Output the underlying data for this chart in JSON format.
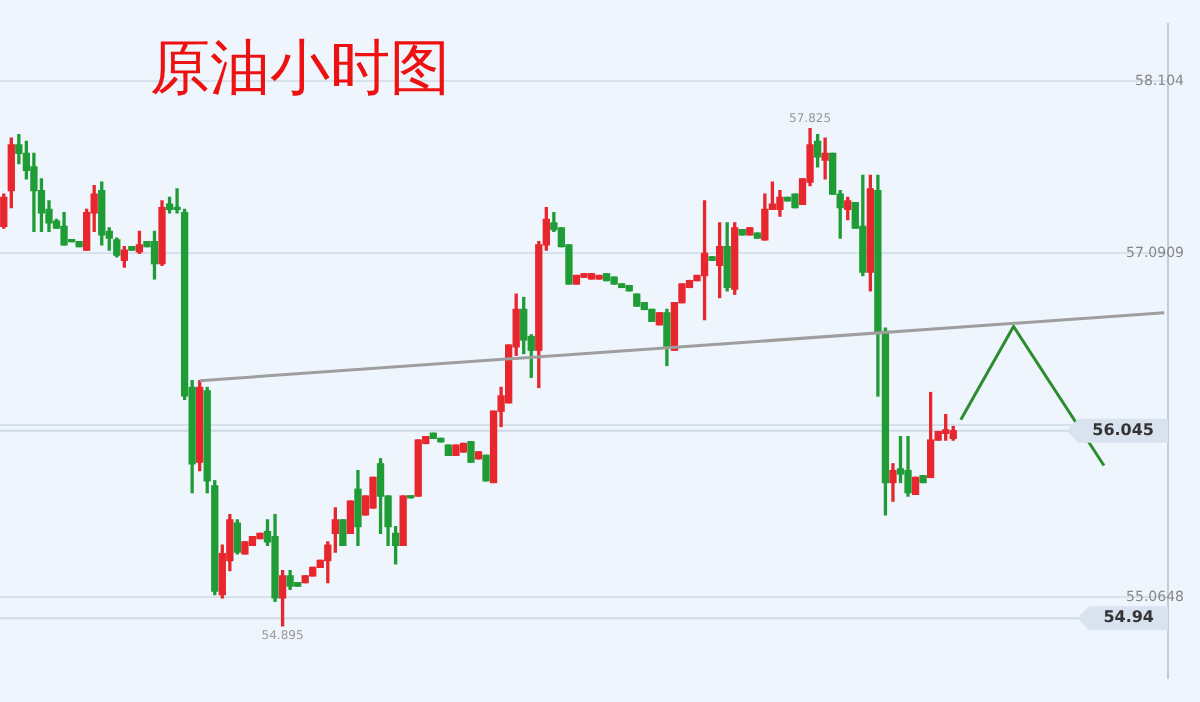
{
  "chart_data": {
    "type": "candlestick",
    "title": "原油小时图",
    "categories": [
      null,
      null,
      null,
      null,
      null,
      null,
      null,
      null,
      null,
      null,
      null,
      null,
      null,
      null,
      null,
      null,
      null,
      null,
      null,
      null,
      null,
      null,
      null,
      null,
      null,
      null,
      null,
      null,
      null,
      null,
      null,
      null,
      null,
      null,
      null,
      null,
      null,
      null,
      null,
      null,
      null,
      null,
      null,
      null,
      null,
      null,
      null,
      null,
      null,
      null,
      null,
      null,
      null,
      null,
      null,
      null,
      null,
      null,
      null,
      null,
      null,
      null,
      null,
      null,
      null,
      null,
      null,
      null,
      null,
      null,
      null,
      null,
      null,
      null,
      null,
      null,
      null,
      null,
      null,
      null,
      null,
      null,
      null,
      null,
      null,
      null,
      null,
      null,
      null,
      null,
      null,
      null,
      null,
      null,
      null,
      null,
      null,
      null,
      null,
      null,
      null,
      null,
      null,
      null,
      null,
      null,
      null,
      null,
      null,
      null,
      null,
      null,
      null,
      null,
      null,
      null,
      null,
      null,
      null,
      null,
      null,
      null,
      null,
      null,
      null,
      null,
      null,
      null,
      null,
      null,
      null,
      null,
      null,
      null,
      null,
      null,
      null,
      null,
      null,
      null,
      null,
      null,
      null,
      null,
      null,
      null,
      null,
      null,
      null,
      null,
      null,
      null,
      null,
      null,
      null
    ],
    "ohlc": [
      [
        57.25,
        57.44,
        57.24,
        57.42
      ],
      [
        57.46,
        57.77,
        57.36,
        57.73
      ],
      [
        57.73,
        57.79,
        57.62,
        57.68
      ],
      [
        57.68,
        57.75,
        57.53,
        57.58
      ],
      [
        57.6,
        57.68,
        57.22,
        57.46
      ],
      [
        57.46,
        57.53,
        57.22,
        57.33
      ],
      [
        57.35,
        57.4,
        57.22,
        57.27
      ],
      [
        57.28,
        57.29,
        57.24,
        57.24
      ],
      [
        57.25,
        57.33,
        57.14,
        57.14
      ],
      [
        57.17,
        57.17,
        57.16,
        57.16
      ],
      [
        57.16,
        57.16,
        57.13,
        57.13
      ],
      [
        57.11,
        57.35,
        57.11,
        57.33
      ],
      [
        57.33,
        57.49,
        57.22,
        57.44
      ],
      [
        57.46,
        57.51,
        57.14,
        57.2
      ],
      [
        57.22,
        57.24,
        57.11,
        57.18
      ],
      [
        57.17,
        57.18,
        57.07,
        57.08
      ],
      [
        57.05,
        57.13,
        57.01,
        57.11
      ],
      [
        57.13,
        57.13,
        57.11,
        57.11
      ],
      [
        57.1,
        57.22,
        57.09,
        57.14
      ],
      [
        57.16,
        57.16,
        57.13,
        57.13
      ],
      [
        57.16,
        57.22,
        56.94,
        57.03
      ],
      [
        57.03,
        57.4,
        57.02,
        57.36
      ],
      [
        57.38,
        57.42,
        57.33,
        57.35
      ],
      [
        57.36,
        57.47,
        57.33,
        57.35
      ],
      [
        57.33,
        57.35,
        56.23,
        56.25
      ],
      [
        56.3,
        56.34,
        55.68,
        55.85
      ],
      [
        55.86,
        56.34,
        55.81,
        56.3
      ],
      [
        56.28,
        56.3,
        55.68,
        55.75
      ],
      [
        55.72,
        55.75,
        55.08,
        55.1
      ],
      [
        55.08,
        55.37,
        55.06,
        55.32
      ],
      [
        55.28,
        55.55,
        55.22,
        55.52
      ],
      [
        55.5,
        55.52,
        55.32,
        55.33
      ],
      [
        55.32,
        55.39,
        55.32,
        55.39
      ],
      [
        55.37,
        55.42,
        55.37,
        55.42
      ],
      [
        55.41,
        55.44,
        55.41,
        55.44
      ],
      [
        55.45,
        55.52,
        55.37,
        55.39
      ],
      [
        55.42,
        55.55,
        55.04,
        55.06
      ],
      [
        55.06,
        55.22,
        54.895,
        55.19
      ],
      [
        55.19,
        55.22,
        55.11,
        55.13
      ],
      [
        55.15,
        55.15,
        55.13,
        55.13
      ],
      [
        55.15,
        55.19,
        55.15,
        55.19
      ],
      [
        55.19,
        55.24,
        55.19,
        55.24
      ],
      [
        55.24,
        55.28,
        55.24,
        55.28
      ],
      [
        55.28,
        55.39,
        55.15,
        55.37
      ],
      [
        55.44,
        55.59,
        55.33,
        55.52
      ],
      [
        55.52,
        55.52,
        55.37,
        55.37
      ],
      [
        55.44,
        55.63,
        55.44,
        55.63
      ],
      [
        55.7,
        55.81,
        55.37,
        55.48
      ],
      [
        55.55,
        55.66,
        55.55,
        55.66
      ],
      [
        55.59,
        55.77,
        55.59,
        55.77
      ],
      [
        55.85,
        55.88,
        55.44,
        55.66
      ],
      [
        55.66,
        55.66,
        55.37,
        55.48
      ],
      [
        55.44,
        55.48,
        55.26,
        55.37
      ],
      [
        55.37,
        55.66,
        55.37,
        55.66
      ],
      [
        55.66,
        55.66,
        55.65,
        55.65
      ],
      [
        55.66,
        55.99,
        55.66,
        55.99
      ],
      [
        55.97,
        56.01,
        55.97,
        56.01
      ],
      [
        56.03,
        56.03,
        56.0,
        56.0
      ],
      [
        56.0,
        56.0,
        55.98,
        55.98
      ],
      [
        55.96,
        55.96,
        55.9,
        55.9
      ],
      [
        55.9,
        55.96,
        55.9,
        55.96
      ],
      [
        55.92,
        55.97,
        55.92,
        55.97
      ],
      [
        55.98,
        55.98,
        55.86,
        55.86
      ],
      [
        55.88,
        55.92,
        55.88,
        55.92
      ],
      [
        55.9,
        55.9,
        55.75,
        55.75
      ],
      [
        55.74,
        56.16,
        55.74,
        56.16
      ],
      [
        56.16,
        56.3,
        56.07,
        56.25
      ],
      [
        56.21,
        56.55,
        56.21,
        56.55
      ],
      [
        56.54,
        56.85,
        56.49,
        56.76
      ],
      [
        56.76,
        56.83,
        56.5,
        56.58
      ],
      [
        56.6,
        56.61,
        56.36,
        56.52
      ],
      [
        56.52,
        57.16,
        56.3,
        57.14
      ],
      [
        57.14,
        57.36,
        57.11,
        57.29
      ],
      [
        57.27,
        57.33,
        57.22,
        57.23
      ],
      [
        57.24,
        57.24,
        57.13,
        57.13
      ],
      [
        57.14,
        57.14,
        56.91,
        56.91
      ],
      [
        56.91,
        56.96,
        56.91,
        56.96
      ],
      [
        56.95,
        56.97,
        56.95,
        56.97
      ],
      [
        56.94,
        56.97,
        56.94,
        56.97
      ],
      [
        56.94,
        56.96,
        56.94,
        56.96
      ],
      [
        56.97,
        56.97,
        56.93,
        56.93
      ],
      [
        56.95,
        56.95,
        56.91,
        56.91
      ],
      [
        56.91,
        56.91,
        56.89,
        56.89
      ],
      [
        56.9,
        56.9,
        56.87,
        56.87
      ],
      [
        56.85,
        56.85,
        56.78,
        56.78
      ],
      [
        56.8,
        56.8,
        56.76,
        56.76
      ],
      [
        56.76,
        56.76,
        56.69,
        56.69
      ],
      [
        56.67,
        56.74,
        56.67,
        56.74
      ],
      [
        56.74,
        56.76,
        56.43,
        56.54
      ],
      [
        56.52,
        56.8,
        56.52,
        56.8
      ],
      [
        56.8,
        56.91,
        56.8,
        56.91
      ],
      [
        56.89,
        56.93,
        56.89,
        56.93
      ],
      [
        56.93,
        56.96,
        56.93,
        56.96
      ],
      [
        56.96,
        57.4,
        56.7,
        57.09
      ],
      [
        57.07,
        57.07,
        57.05,
        57.05
      ],
      [
        57.02,
        57.27,
        56.83,
        57.13
      ],
      [
        57.13,
        57.27,
        56.87,
        56.89
      ],
      [
        56.88,
        57.27,
        56.85,
        57.24
      ],
      [
        57.23,
        57.23,
        57.2,
        57.2
      ],
      [
        57.2,
        57.24,
        57.2,
        57.24
      ],
      [
        57.21,
        57.21,
        57.18,
        57.18
      ],
      [
        57.17,
        57.44,
        57.17,
        57.35
      ],
      [
        57.35,
        57.51,
        57.35,
        57.38
      ],
      [
        57.35,
        57.46,
        57.31,
        57.42
      ],
      [
        57.42,
        57.42,
        57.4,
        57.4
      ],
      [
        57.44,
        57.44,
        57.36,
        57.36
      ],
      [
        57.38,
        57.53,
        57.38,
        57.53
      ],
      [
        57.51,
        57.825,
        57.49,
        57.73
      ],
      [
        57.75,
        57.79,
        57.6,
        57.66
      ],
      [
        57.64,
        57.77,
        57.53,
        57.68
      ],
      [
        57.68,
        57.68,
        57.44,
        57.44
      ],
      [
        57.44,
        57.46,
        57.18,
        57.36
      ],
      [
        57.35,
        57.42,
        57.29,
        57.4
      ],
      [
        57.39,
        57.39,
        57.24,
        57.24
      ],
      [
        57.25,
        57.55,
        56.96,
        56.98
      ],
      [
        56.98,
        57.55,
        56.87,
        57.47
      ],
      [
        57.46,
        57.55,
        56.25,
        56.63
      ],
      [
        56.63,
        56.65,
        55.55,
        55.74
      ],
      [
        55.74,
        55.85,
        55.63,
        55.81
      ],
      [
        55.82,
        56.01,
        55.74,
        55.79
      ],
      [
        55.81,
        56.01,
        55.66,
        55.68
      ],
      [
        55.67,
        55.77,
        55.67,
        55.77
      ],
      [
        55.78,
        55.78,
        55.74,
        55.74
      ],
      [
        55.77,
        56.27,
        55.77,
        55.99
      ],
      [
        55.99,
        56.04,
        55.99,
        56.04
      ],
      [
        56.03,
        56.14,
        55.99,
        56.05
      ],
      [
        56.0,
        56.07,
        55.99,
        56.045
      ],
      null,
      null,
      null,
      null,
      null,
      null,
      null,
      null,
      null,
      null,
      null,
      null,
      null,
      null,
      null,
      null,
      null,
      null,
      null,
      null,
      null,
      null,
      null,
      null,
      null,
      null,
      null,
      null
    ],
    "colors": [
      "#e8262d",
      "#e8262d",
      "#1f9c35",
      "#1f9c35",
      "#1f9c35",
      "#1f9c35",
      "#1f9c35",
      "#1f9c35",
      "#1f9c35",
      "#1f9c35",
      "#1f9c35",
      "#e8262d",
      "#e8262d",
      "#1f9c35",
      "#1f9c35",
      "#1f9c35",
      "#e8262d",
      "#1f9c35",
      "#e8262d",
      "#1f9c35",
      "#1f9c35",
      "#e8262d",
      "#1f9c35",
      "#1f9c35",
      "#1f9c35",
      "#1f9c35",
      "#e8262d",
      "#1f9c35",
      "#1f9c35",
      "#e8262d",
      "#e8262d",
      "#1f9c35",
      "#e8262d",
      "#e8262d",
      "#e8262d",
      "#1f9c35",
      "#1f9c35",
      "#e8262d",
      "#1f9c35",
      "#1f9c35",
      "#e8262d",
      "#e8262d",
      "#e8262d",
      "#e8262d",
      "#e8262d",
      "#1f9c35",
      "#e8262d",
      "#1f9c35",
      "#e8262d",
      "#e8262d",
      "#1f9c35",
      "#1f9c35",
      "#1f9c35",
      "#e8262d",
      "#1f9c35",
      "#e8262d",
      "#e8262d",
      "#1f9c35",
      "#1f9c35",
      "#1f9c35",
      "#e8262d",
      "#e8262d",
      "#1f9c35",
      "#e8262d",
      "#1f9c35",
      "#e8262d",
      "#e8262d",
      "#e8262d",
      "#e8262d",
      "#1f9c35",
      "#1f9c35",
      "#e8262d",
      "#e8262d",
      "#1f9c35",
      "#1f9c35",
      "#1f9c35",
      "#e8262d",
      "#e8262d",
      "#e8262d",
      "#e8262d",
      "#1f9c35",
      "#1f9c35",
      "#1f9c35",
      "#1f9c35",
      "#1f9c35",
      "#1f9c35",
      "#1f9c35",
      "#e8262d",
      "#1f9c35",
      "#e8262d",
      "#e8262d",
      "#e8262d",
      "#e8262d",
      "#e8262d",
      "#1f9c35",
      "#e8262d",
      "#1f9c35",
      "#e8262d",
      "#1f9c35",
      "#e8262d",
      "#1f9c35",
      "#e8262d",
      "#e8262d",
      "#e8262d",
      "#1f9c35",
      "#1f9c35",
      "#e8262d",
      "#e8262d",
      "#1f9c35",
      "#e8262d",
      "#1f9c35",
      "#1f9c35",
      "#e8262d",
      "#1f9c35",
      "#1f9c35",
      "#e8262d",
      "#1f9c35",
      "#1f9c35",
      "#e8262d",
      "#1f9c35",
      "#1f9c35",
      "#e8262d",
      "#1f9c35",
      "#e8262d",
      "#e8262d",
      "#e8262d",
      "#e8262d",
      null,
      null,
      null,
      null,
      null,
      null,
      null,
      null,
      null,
      null,
      null,
      null,
      null,
      null,
      null,
      null,
      null,
      null,
      null,
      null,
      null,
      null,
      null,
      null,
      null,
      null,
      null,
      null
    ],
    "series": [
      {
        "type": "line",
        "color": "#9e9e9e",
        "values": [
          null,
          null,
          null,
          null,
          null,
          null,
          null,
          null,
          null,
          null,
          null,
          null,
          null,
          null,
          null,
          null,
          null,
          null,
          null,
          null,
          null,
          null,
          null,
          null,
          null,
          null,
          56.34,
          null,
          null,
          null,
          null,
          null,
          null,
          null,
          null,
          null,
          null,
          null,
          null,
          null,
          null,
          null,
          null,
          null,
          null,
          null,
          null,
          null,
          null,
          null,
          null,
          null,
          null,
          null,
          null,
          null,
          null,
          null,
          null,
          null,
          null,
          null,
          null,
          null,
          null,
          null,
          null,
          null,
          null,
          null,
          null,
          null,
          null,
          null,
          null,
          null,
          null,
          null,
          null,
          null,
          null,
          null,
          null,
          null,
          null,
          null,
          null,
          null,
          null,
          null,
          null,
          null,
          null,
          null,
          null,
          null,
          null,
          null,
          null,
          null,
          null,
          null,
          null,
          null,
          null,
          null,
          null,
          null,
          null,
          null,
          null,
          null,
          null,
          null,
          null,
          null,
          null,
          null,
          null,
          null,
          null,
          null,
          null,
          null,
          null,
          null,
          null,
          null,
          null,
          null,
          null,
          null,
          null,
          null,
          null,
          null,
          null,
          null,
          null,
          null,
          null,
          null,
          null,
          null,
          null,
          null,
          null,
          null,
          null,
          null,
          null,
          null,
          null,
          null,
          56.74
        ]
      },
      {
        "type": "line",
        "color": "#2e8b2e",
        "values": [
          null,
          null,
          null,
          null,
          null,
          null,
          null,
          null,
          null,
          null,
          null,
          null,
          null,
          null,
          null,
          null,
          null,
          null,
          null,
          null,
          null,
          null,
          null,
          null,
          null,
          null,
          null,
          null,
          null,
          null,
          null,
          null,
          null,
          null,
          null,
          null,
          null,
          null,
          null,
          null,
          null,
          null,
          null,
          null,
          null,
          null,
          null,
          null,
          null,
          null,
          null,
          null,
          null,
          null,
          null,
          null,
          null,
          null,
          null,
          null,
          null,
          null,
          null,
          null,
          null,
          null,
          null,
          null,
          null,
          null,
          null,
          null,
          null,
          null,
          null,
          null,
          null,
          null,
          null,
          null,
          null,
          null,
          null,
          null,
          null,
          null,
          null,
          null,
          null,
          null,
          null,
          null,
          null,
          null,
          null,
          null,
          null,
          null,
          null,
          null,
          null,
          null,
          null,
          null,
          null,
          null,
          null,
          null,
          null,
          null,
          null,
          null,
          null,
          null,
          null,
          null,
          null,
          null,
          null,
          null,
          null,
          null,
          null,
          null,
          null,
          null,
          null,
          56.11,
          null,
          null,
          null,
          null,
          null,
          null,
          56.66,
          null,
          null,
          null,
          null,
          null,
          null,
          null,
          null,
          null,
          null,
          null,
          55.84,
          null,
          null,
          null,
          null,
          null,
          null,
          null,
          null
        ]
      }
    ],
    "ylim": [
      54.59,
      58.44
    ],
    "yticks": [
      58.104,
      57.0909,
      {
        "value": 56.0778,
        "label": null
      },
      55.0648
    ],
    "grid": "y",
    "tick_labels": "y",
    "annotations": [
      {
        "text": "57.825",
        "y": 57.825
      },
      {
        "text": "54.895",
        "y": 54.895
      }
    ],
    "ref_lines": [
      {
        "axis": "y",
        "value": 56.045,
        "label": "56.045"
      },
      {
        "axis": "y",
        "value": 54.94,
        "label": "54.94"
      }
    ]
  }
}
